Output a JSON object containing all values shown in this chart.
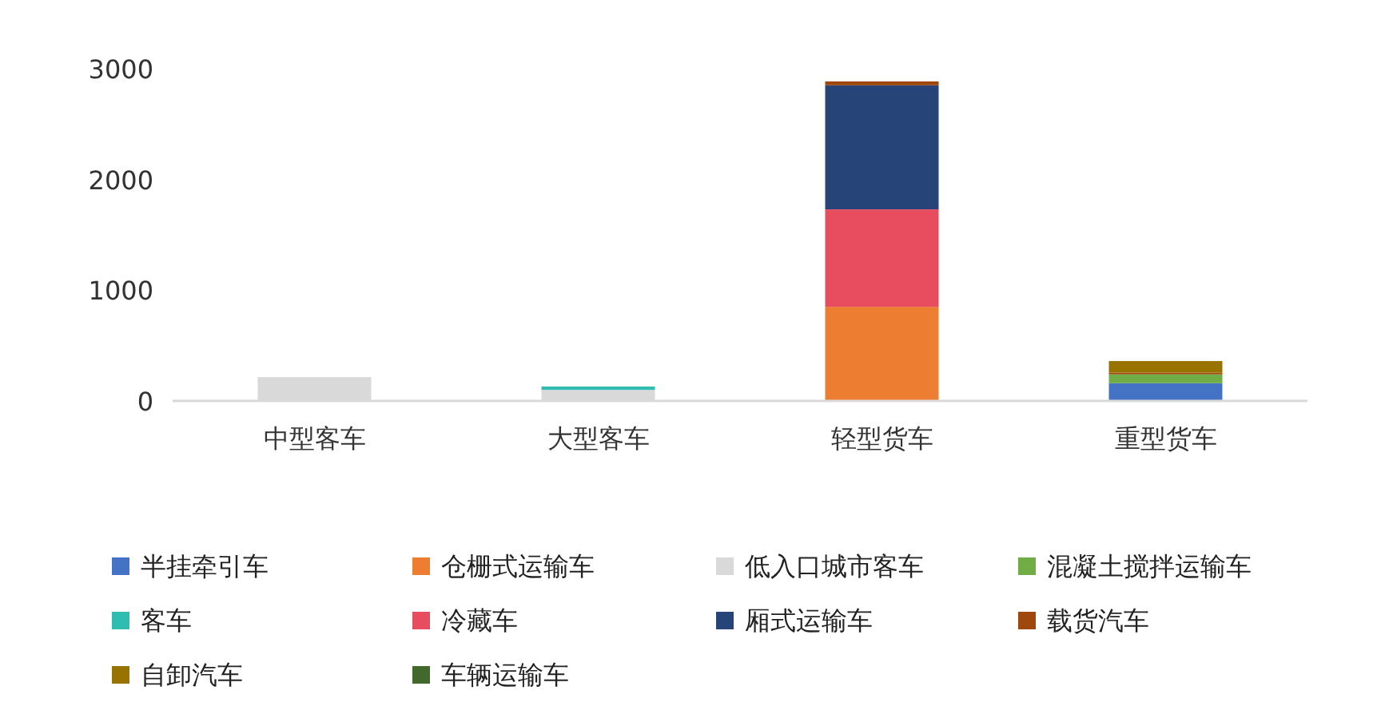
{
  "chart_data": {
    "type": "bar",
    "stacked": true,
    "legend": "bottom",
    "categories": [
      "中型客车",
      "大型客车",
      "轻型货车",
      "重型货车"
    ],
    "ylim": [
      0,
      3000
    ],
    "yticks": [
      0,
      1000,
      2000,
      3000
    ],
    "series": [
      {
        "name": "半挂牵引车",
        "color": "#4472c4",
        "values": [
          null,
          null,
          null,
          160
        ]
      },
      {
        "name": "仓栅式运输车",
        "color": "#ed7d31",
        "values": [
          null,
          null,
          850,
          null
        ]
      },
      {
        "name": "低入口城市客车",
        "color": "#d9d9d9",
        "values": [
          215,
          100,
          null,
          null
        ]
      },
      {
        "name": "混凝土搅拌运输车",
        "color": "#70ad47",
        "values": [
          null,
          null,
          null,
          80
        ]
      },
      {
        "name": "客车",
        "color": "#2ebdb0",
        "values": [
          null,
          30,
          null,
          null
        ]
      },
      {
        "name": "冷藏车",
        "color": "#e84c5f",
        "values": [
          null,
          null,
          880,
          null
        ]
      },
      {
        "name": "厢式运输车",
        "color": "#264478",
        "values": [
          null,
          null,
          1120,
          null
        ]
      },
      {
        "name": "载货汽车",
        "color": "#9e480e",
        "values": [
          null,
          null,
          35,
          15
        ]
      },
      {
        "name": "自卸汽车",
        "color": "#997300",
        "values": [
          null,
          null,
          null,
          105
        ]
      },
      {
        "name": "车辆运输车",
        "color": "#43682b",
        "values": [
          null,
          null,
          null,
          null
        ]
      }
    ]
  }
}
